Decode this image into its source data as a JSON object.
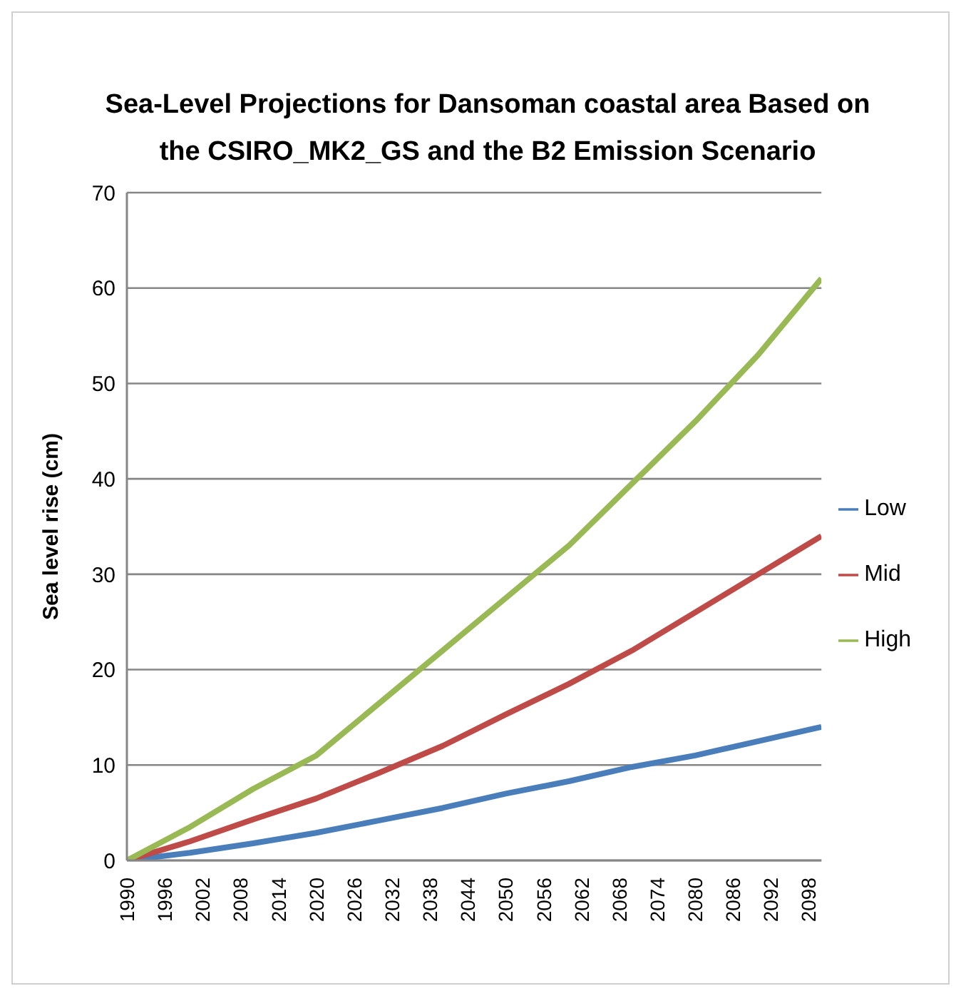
{
  "chart_data": {
    "type": "line",
    "title": "Sea-Level Projections for Dansoman coastal area Based on the CSIRO_MK2_GS and the B2 Emission Scenario",
    "ylabel": "Sea level rise (cm)",
    "x": [
      1990,
      2000,
      2010,
      2020,
      2030,
      2040,
      2050,
      2060,
      2070,
      2080,
      2090,
      2100
    ],
    "series": [
      {
        "name": "Low",
        "color": "#4a7ebb",
        "values": [
          0,
          0.8,
          1.8,
          2.9,
          4.2,
          5.5,
          7,
          8.3,
          9.8,
          11,
          12.5,
          14
        ]
      },
      {
        "name": "Mid",
        "color": "#be4b48",
        "values": [
          0,
          2,
          4.3,
          6.5,
          9.2,
          12,
          15.3,
          18.5,
          22,
          26,
          30,
          34
        ]
      },
      {
        "name": "High",
        "color": "#98b954",
        "values": [
          0,
          3.5,
          7.5,
          11,
          16.5,
          22,
          27.5,
          33,
          39.5,
          46,
          53,
          61
        ]
      }
    ],
    "xlim": [
      1990,
      2100
    ],
    "xticks": [
      1990,
      1996,
      2002,
      2008,
      2014,
      2020,
      2026,
      2032,
      2038,
      2044,
      2050,
      2056,
      2062,
      2068,
      2074,
      2080,
      2086,
      2092,
      2098
    ],
    "ylim": [
      0,
      70
    ],
    "yticks": [
      0,
      10,
      20,
      30,
      40,
      50,
      60,
      70
    ],
    "grid": "y",
    "legend": "right",
    "marker": "none",
    "line_style": "solid"
  }
}
